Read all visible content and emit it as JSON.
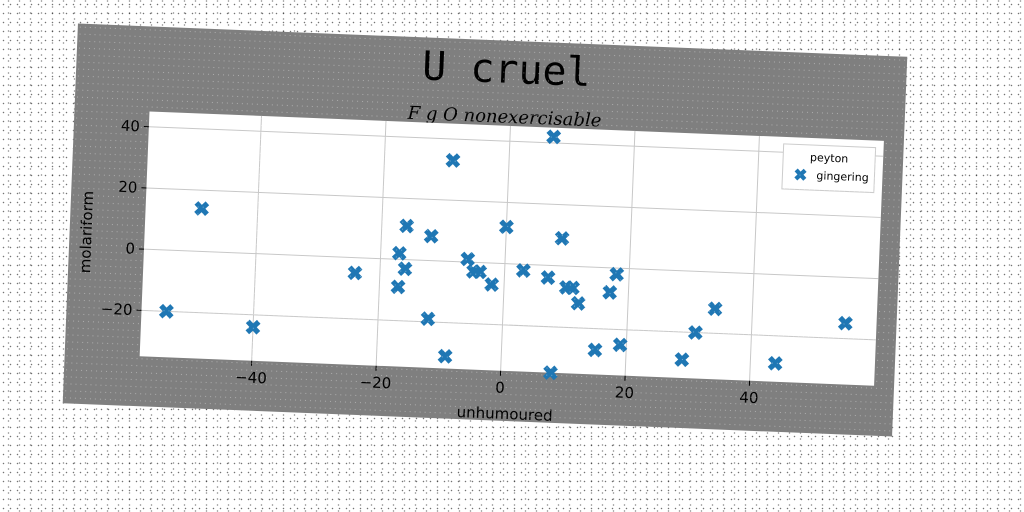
{
  "chart_data": {
    "type": "scatter",
    "title": "U cruel",
    "subtitle": "F g O nonexercisable",
    "xlabel": "unhumoured",
    "ylabel": "molariform",
    "xlim": [
      -58,
      60
    ],
    "ylim": [
      -35,
      45
    ],
    "xticks": [
      "−40",
      "−20",
      "0",
      "20",
      "40"
    ],
    "xtick_values": [
      -40,
      -20,
      0,
      20,
      40
    ],
    "yticks": [
      "−20",
      "0",
      "20",
      "40"
    ],
    "ytick_values": [
      -20,
      0,
      20,
      40
    ],
    "grid": true,
    "legend": {
      "title": "peyton",
      "placement": "top-right"
    },
    "marker": "X",
    "colors": {
      "series": "#1f77b4",
      "card": "#7f7f7f",
      "plot_bg": "#ffffff",
      "grid": "#c8c8c8"
    },
    "series": [
      {
        "name": "gingering",
        "points": [
          [
            -54,
            -20
          ],
          [
            -49,
            14
          ],
          [
            -40,
            -24
          ],
          [
            -24,
            -5
          ],
          [
            -17,
            2
          ],
          [
            -16,
            11
          ],
          [
            -16,
            -3
          ],
          [
            -17,
            -9
          ],
          [
            -12,
            8
          ],
          [
            -12,
            -19
          ],
          [
            -9,
            33
          ],
          [
            -9,
            -31
          ],
          [
            -6,
            1
          ],
          [
            -5,
            -3
          ],
          [
            -4,
            -3
          ],
          [
            -2,
            -7
          ],
          [
            0,
            12
          ],
          [
            3,
            -2
          ],
          [
            7,
            42
          ],
          [
            7,
            -4
          ],
          [
            8,
            -35
          ],
          [
            9,
            9
          ],
          [
            10,
            -7
          ],
          [
            11,
            -7
          ],
          [
            12,
            -12
          ],
          [
            15,
            -27
          ],
          [
            17,
            -8
          ],
          [
            18,
            -2
          ],
          [
            19,
            -25
          ],
          [
            29,
            -29
          ],
          [
            31,
            -20
          ],
          [
            34,
            -12
          ],
          [
            44,
            -29
          ],
          [
            55,
            -15
          ]
        ]
      }
    ]
  }
}
